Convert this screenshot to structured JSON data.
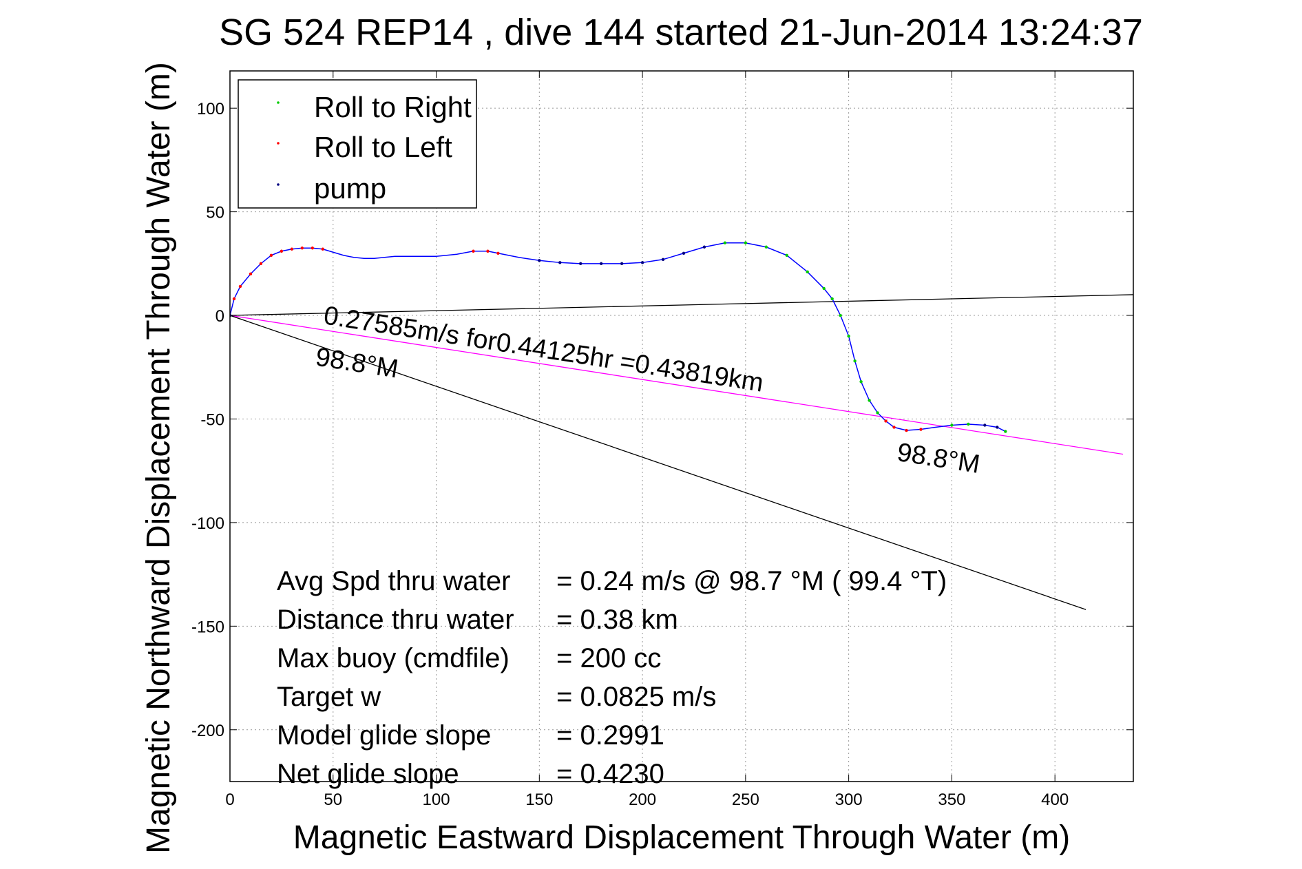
{
  "chart_data": {
    "type": "line",
    "title": "SG 524   REP14  , dive 144 started 21-Jun-2014 13:24:37",
    "xlabel": "Magnetic Eastward Displacement Through Water (m)",
    "ylabel": "Magnetic Northward Displacement Through Water (m)",
    "xlim": [
      0,
      438
    ],
    "ylim": [
      -225,
      118
    ],
    "xticks": [
      0,
      50,
      100,
      150,
      200,
      250,
      300,
      350,
      400
    ],
    "yticks": [
      100,
      50,
      0,
      -50,
      -100,
      -150,
      -200
    ],
    "grid": true,
    "legend_position": "top-left",
    "legend": [
      {
        "label": "Roll to Right",
        "color": "#00cc00"
      },
      {
        "label": "Roll to Left",
        "color": "#ff0000"
      },
      {
        "label": "pump",
        "color": "#000080"
      }
    ],
    "track": {
      "color": "#0000ff",
      "points": [
        [
          0,
          0
        ],
        [
          2,
          8
        ],
        [
          5,
          14
        ],
        [
          10,
          20
        ],
        [
          15,
          25
        ],
        [
          20,
          29
        ],
        [
          25,
          31
        ],
        [
          30,
          32
        ],
        [
          35,
          32.5
        ],
        [
          40,
          32.5
        ],
        [
          45,
          32
        ],
        [
          50,
          30.5
        ],
        [
          55,
          29
        ],
        [
          60,
          28
        ],
        [
          65,
          27.5
        ],
        [
          70,
          27.5
        ],
        [
          75,
          28
        ],
        [
          80,
          28.5
        ],
        [
          90,
          28.5
        ],
        [
          100,
          28.5
        ],
        [
          110,
          29.5
        ],
        [
          118,
          31
        ],
        [
          125,
          31
        ],
        [
          130,
          30
        ],
        [
          140,
          28
        ],
        [
          150,
          26.5
        ],
        [
          160,
          25.5
        ],
        [
          170,
          25
        ],
        [
          180,
          25
        ],
        [
          190,
          25
        ],
        [
          200,
          25.5
        ],
        [
          210,
          27
        ],
        [
          220,
          30
        ],
        [
          230,
          33
        ],
        [
          240,
          35
        ],
        [
          250,
          35
        ],
        [
          260,
          33
        ],
        [
          270,
          29
        ],
        [
          280,
          21
        ],
        [
          288,
          13
        ],
        [
          292,
          8
        ],
        [
          296,
          0
        ],
        [
          300,
          -10
        ],
        [
          303,
          -22
        ],
        [
          306,
          -32
        ],
        [
          310,
          -41
        ],
        [
          314,
          -47
        ],
        [
          318,
          -51
        ],
        [
          322,
          -54
        ],
        [
          328,
          -55.5
        ],
        [
          335,
          -55
        ],
        [
          342,
          -54
        ],
        [
          350,
          -53
        ],
        [
          358,
          -52.5
        ],
        [
          366,
          -53
        ],
        [
          372,
          -54
        ],
        [
          376,
          -56
        ]
      ]
    },
    "roll_right": [
      [
        240,
        35
      ],
      [
        250,
        35
      ],
      [
        260,
        33
      ],
      [
        270,
        29
      ],
      [
        280,
        21
      ],
      [
        288,
        13
      ],
      [
        292,
        8
      ],
      [
        296,
        0
      ],
      [
        300,
        -10
      ],
      [
        303,
        -22
      ],
      [
        306,
        -32
      ],
      [
        310,
        -41
      ],
      [
        314,
        -47
      ],
      [
        350,
        -53
      ],
      [
        358,
        -52.5
      ],
      [
        376,
        -56
      ]
    ],
    "roll_left": [
      [
        2,
        8
      ],
      [
        5,
        14
      ],
      [
        10,
        20
      ],
      [
        15,
        25
      ],
      [
        20,
        29
      ],
      [
        25,
        31
      ],
      [
        30,
        32
      ],
      [
        35,
        32.5
      ],
      [
        40,
        32.5
      ],
      [
        45,
        32
      ],
      [
        118,
        31
      ],
      [
        125,
        31
      ],
      [
        130,
        30
      ],
      [
        318,
        -51
      ],
      [
        322,
        -54
      ],
      [
        328,
        -55.5
      ],
      [
        335,
        -55
      ]
    ],
    "pump": [
      [
        0,
        0
      ],
      [
        150,
        26.5
      ],
      [
        160,
        25.5
      ],
      [
        170,
        25
      ],
      [
        180,
        25
      ],
      [
        190,
        25
      ],
      [
        200,
        25.5
      ],
      [
        210,
        27
      ],
      [
        220,
        30
      ],
      [
        230,
        33
      ],
      [
        366,
        -53
      ],
      [
        372,
        -54
      ]
    ],
    "lines": [
      {
        "name": "net",
        "color": "#ff00ff",
        "from": [
          0,
          0
        ],
        "to": [
          433,
          -67
        ]
      },
      {
        "name": "upper",
        "color": "#000000",
        "from": [
          0,
          0
        ],
        "to": [
          438,
          10
        ]
      },
      {
        "name": "lower",
        "color": "#000000",
        "from": [
          0,
          0
        ],
        "to": [
          415,
          -142
        ]
      }
    ],
    "annotations": [
      {
        "text": "0.27585m/s for0.44125hr =0.43819km",
        "x": 45,
        "y": -4,
        "rotate": 8.8
      },
      {
        "text": "98.8°M",
        "x": 41,
        "y": -24,
        "rotate": 8.8
      },
      {
        "text": "98.8°M",
        "x": 323,
        "y": -70,
        "rotate": 8.8
      }
    ],
    "stats": [
      {
        "label": "Avg Spd thru water",
        "value": "=  0.24 m/s @  98.7 °M ( 99.4 °T)"
      },
      {
        "label": "Distance thru water",
        "value": "=  0.38 km"
      },
      {
        "label": "Max buoy (cmdfile)",
        "value": "= 200 cc"
      },
      {
        "label": "Target w",
        "value": "= 0.0825 m/s"
      },
      {
        "label": "Model glide slope",
        "value": "= 0.2991"
      },
      {
        "label": "Net glide slope",
        "value": "= 0.4230"
      }
    ]
  }
}
